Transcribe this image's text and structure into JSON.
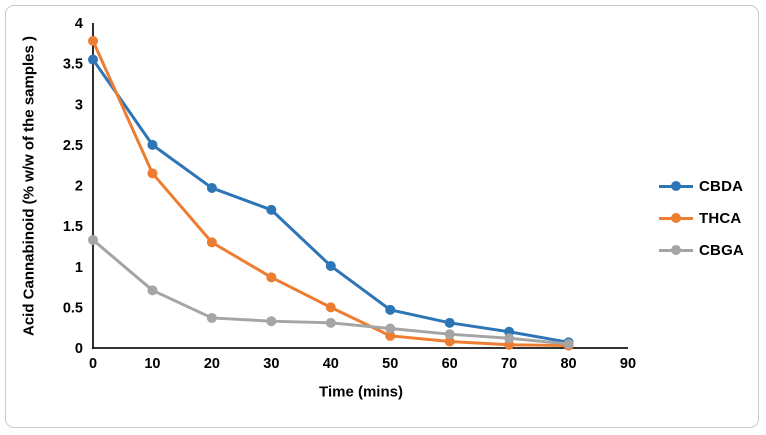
{
  "figure": {
    "background": "#ffffff",
    "border_color": "#c9c9c9",
    "text_color": "#000000",
    "axis_line_color": "#161616"
  },
  "chart_data": {
    "type": "line",
    "title": "",
    "xlabel": "Time (mins)",
    "ylabel": "Acid Cannabinoid (% w/w of the samples )",
    "x": [
      0,
      10,
      20,
      30,
      40,
      50,
      60,
      70,
      80
    ],
    "series": [
      {
        "name": "CBDA",
        "color": "#2E75B6",
        "values": [
          3.55,
          2.5,
          1.97,
          1.7,
          1.01,
          0.47,
          0.31,
          0.2,
          0.07
        ]
      },
      {
        "name": "THCA",
        "color": "#ED7D31",
        "values": [
          3.78,
          2.15,
          1.3,
          0.87,
          0.5,
          0.15,
          0.08,
          0.04,
          0.03
        ]
      },
      {
        "name": "CBGA",
        "color": "#A5A5A5",
        "values": [
          1.33,
          0.71,
          0.37,
          0.33,
          0.31,
          0.24,
          0.17,
          0.12,
          0.05
        ]
      }
    ],
    "xlim": [
      0,
      90
    ],
    "ylim": [
      0,
      4
    ],
    "x_ticks": [
      0,
      10,
      20,
      30,
      40,
      50,
      60,
      70,
      80,
      90
    ],
    "y_ticks": [
      0,
      0.5,
      1,
      1.5,
      2,
      2.5,
      3,
      3.5,
      4
    ],
    "grid": false,
    "legend_position": "right",
    "marker": "circle",
    "line_width": 3,
    "marker_radius": 5
  }
}
